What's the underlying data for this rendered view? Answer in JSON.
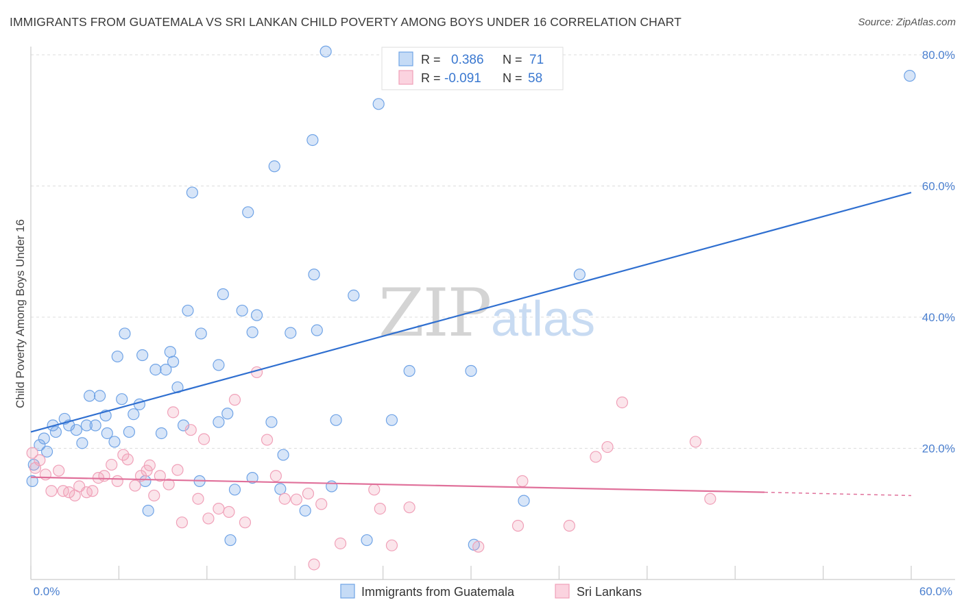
{
  "header": {
    "title": "IMMIGRANTS FROM GUATEMALA VS SRI LANKAN CHILD POVERTY AMONG BOYS UNDER 16 CORRELATION CHART",
    "source": "Source: ZipAtlas.com"
  },
  "watermark": {
    "zip": "ZIP",
    "atlas": "atlas"
  },
  "legend_top": [
    {
      "r_label": "R =",
      "r_value": "0.386",
      "n_label": "N =",
      "n_value": "71",
      "color": "#6fa3e6"
    },
    {
      "r_label": "R =",
      "r_value": "-0.091",
      "n_label": "N =",
      "n_value": "58",
      "color": "#f0a0b8"
    }
  ],
  "legend_bottom": [
    {
      "label": "Immigrants from Guatemala",
      "color": "#6fa3e6"
    },
    {
      "label": "Sri Lankans",
      "color": "#f0a0b8"
    }
  ],
  "chart_data": {
    "type": "scatter",
    "title": "IMMIGRANTS FROM GUATEMALA VS SRI LANKAN CHILD POVERTY AMONG BOYS UNDER 16 CORRELATION CHART",
    "xlabel": "",
    "ylabel": "Child Poverty Among Boys Under 16",
    "xlim": [
      0,
      60
    ],
    "ylim": [
      0,
      80
    ],
    "x_tick_labels": [
      "0.0%",
      "60.0%"
    ],
    "y_tick_labels": [
      "20.0%",
      "40.0%",
      "60.0%",
      "80.0%"
    ],
    "y_ticks": [
      20,
      40,
      60,
      80
    ],
    "grid": true,
    "legend_position": "top-center",
    "series": [
      {
        "name": "Immigrants from Guatemala",
        "color": "#6fa3e6",
        "trend": {
          "x": [
            0,
            60
          ],
          "y": [
            22.5,
            59
          ]
        },
        "points": [
          [
            0.2,
            17.5
          ],
          [
            0.6,
            20.5
          ],
          [
            0.9,
            21.5
          ],
          [
            1.1,
            19.5
          ],
          [
            1.5,
            23.5
          ],
          [
            1.7,
            22.5
          ],
          [
            2.3,
            24.5
          ],
          [
            2.6,
            23.5
          ],
          [
            3.1,
            22.8
          ],
          [
            3.5,
            20.8
          ],
          [
            3.8,
            23.5
          ],
          [
            4.0,
            28.0
          ],
          [
            4.4,
            23.5
          ],
          [
            4.7,
            28.0
          ],
          [
            5.1,
            25.0
          ],
          [
            5.2,
            22.3
          ],
          [
            5.7,
            21.0
          ],
          [
            5.9,
            34.0
          ],
          [
            6.2,
            27.5
          ],
          [
            6.4,
            37.5
          ],
          [
            6.7,
            22.5
          ],
          [
            7.0,
            25.2
          ],
          [
            7.4,
            26.7
          ],
          [
            7.6,
            34.2
          ],
          [
            7.8,
            15.0
          ],
          [
            8.0,
            10.5
          ],
          [
            8.5,
            32.0
          ],
          [
            8.9,
            22.3
          ],
          [
            9.2,
            32.0
          ],
          [
            9.5,
            34.7
          ],
          [
            9.7,
            33.2
          ],
          [
            10.0,
            29.3
          ],
          [
            10.4,
            23.5
          ],
          [
            10.7,
            41.0
          ],
          [
            11.0,
            59.0
          ],
          [
            11.5,
            15.0
          ],
          [
            11.6,
            37.5
          ],
          [
            12.8,
            24.0
          ],
          [
            12.8,
            32.7
          ],
          [
            13.1,
            43.5
          ],
          [
            13.4,
            25.3
          ],
          [
            13.6,
            6.0
          ],
          [
            13.9,
            13.7
          ],
          [
            14.4,
            41.0
          ],
          [
            14.8,
            56.0
          ],
          [
            15.1,
            37.7
          ],
          [
            15.1,
            15.5
          ],
          [
            15.4,
            40.3
          ],
          [
            16.4,
            24.0
          ],
          [
            16.6,
            63.0
          ],
          [
            17.0,
            13.8
          ],
          [
            17.2,
            19.0
          ],
          [
            17.7,
            37.6
          ],
          [
            18.7,
            10.5
          ],
          [
            19.2,
            67.0
          ],
          [
            19.3,
            46.5
          ],
          [
            19.5,
            38.0
          ],
          [
            20.1,
            80.5
          ],
          [
            20.5,
            14.2
          ],
          [
            20.8,
            24.3
          ],
          [
            22.0,
            43.3
          ],
          [
            22.9,
            6.0
          ],
          [
            23.7,
            72.5
          ],
          [
            24.6,
            24.3
          ],
          [
            25.8,
            31.8
          ],
          [
            30.0,
            31.8
          ],
          [
            30.2,
            5.3
          ],
          [
            33.6,
            12.0
          ],
          [
            37.4,
            46.5
          ],
          [
            59.9,
            76.8
          ],
          [
            0.1,
            15.0
          ]
        ]
      },
      {
        "name": "Sri Lankans",
        "color": "#f0a0b8",
        "trend": {
          "x": [
            0,
            50
          ],
          "y": [
            15.6,
            13.3
          ]
        },
        "trend_dashed": {
          "x": [
            50,
            60
          ],
          "y": [
            13.3,
            12.8
          ]
        },
        "points": [
          [
            0.1,
            19.3
          ],
          [
            0.3,
            17.0
          ],
          [
            0.6,
            18.2
          ],
          [
            1.0,
            16.0
          ],
          [
            1.4,
            13.5
          ],
          [
            1.9,
            16.6
          ],
          [
            2.2,
            13.5
          ],
          [
            2.6,
            13.3
          ],
          [
            3.0,
            12.8
          ],
          [
            3.3,
            14.2
          ],
          [
            3.8,
            13.3
          ],
          [
            4.2,
            13.5
          ],
          [
            4.6,
            15.5
          ],
          [
            5.0,
            15.8
          ],
          [
            5.5,
            17.5
          ],
          [
            5.9,
            15.0
          ],
          [
            6.3,
            19.0
          ],
          [
            6.6,
            18.3
          ],
          [
            7.1,
            14.3
          ],
          [
            7.5,
            15.8
          ],
          [
            7.9,
            16.6
          ],
          [
            8.1,
            17.4
          ],
          [
            8.4,
            12.8
          ],
          [
            8.8,
            15.8
          ],
          [
            9.4,
            14.5
          ],
          [
            9.7,
            25.5
          ],
          [
            10.0,
            16.7
          ],
          [
            10.3,
            8.7
          ],
          [
            10.9,
            22.8
          ],
          [
            11.4,
            12.3
          ],
          [
            11.8,
            21.4
          ],
          [
            12.1,
            9.3
          ],
          [
            12.8,
            10.8
          ],
          [
            13.5,
            10.3
          ],
          [
            13.9,
            27.4
          ],
          [
            14.6,
            8.7
          ],
          [
            15.4,
            31.6
          ],
          [
            16.1,
            21.3
          ],
          [
            16.7,
            15.8
          ],
          [
            17.3,
            12.3
          ],
          [
            18.1,
            12.2
          ],
          [
            18.9,
            13.1
          ],
          [
            19.3,
            2.3
          ],
          [
            19.8,
            11.5
          ],
          [
            21.1,
            5.5
          ],
          [
            23.4,
            13.7
          ],
          [
            23.8,
            10.8
          ],
          [
            24.6,
            5.2
          ],
          [
            25.8,
            11.0
          ],
          [
            30.5,
            5.0
          ],
          [
            33.2,
            8.2
          ],
          [
            33.5,
            15.0
          ],
          [
            36.7,
            8.2
          ],
          [
            38.5,
            18.7
          ],
          [
            39.3,
            20.2
          ],
          [
            40.3,
            27.0
          ],
          [
            45.3,
            21.0
          ],
          [
            46.3,
            12.3
          ]
        ]
      }
    ]
  }
}
